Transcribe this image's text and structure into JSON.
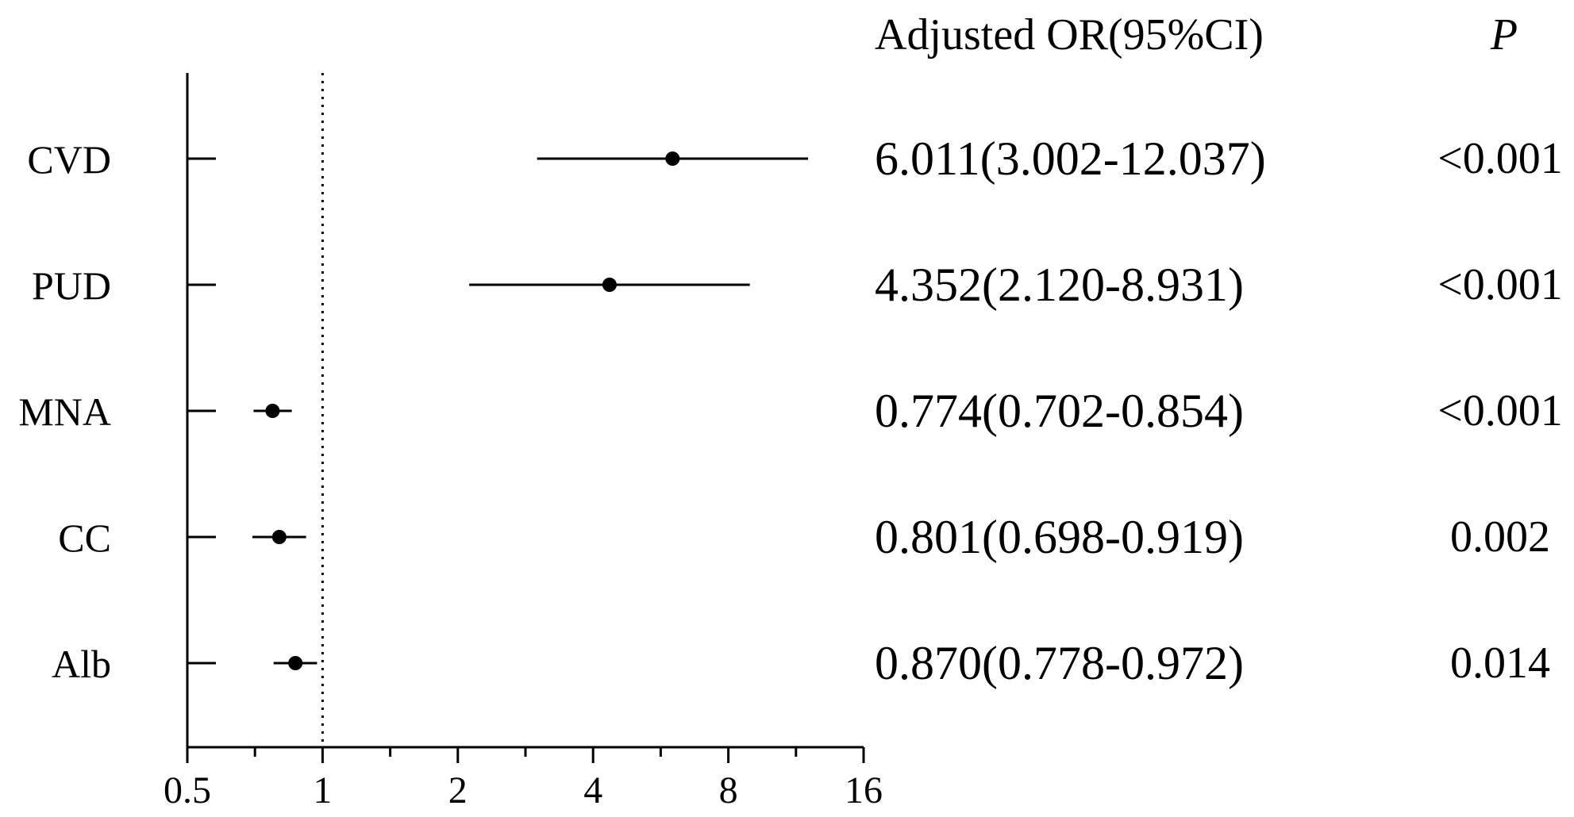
{
  "chart_data": {
    "type": "forest",
    "scale": "log2",
    "xlim": [
      0.5,
      16
    ],
    "reference_line": 1,
    "tick_labels": [
      "0.5",
      "1",
      "2",
      "4",
      "8",
      "16"
    ],
    "tick_values": [
      0.5,
      1,
      2,
      4,
      8,
      16
    ],
    "columns": {
      "estimate_header": "Adjusted OR(95%CI)",
      "p_header": "P"
    },
    "rows": [
      {
        "label": "CVD",
        "or": 6.011,
        "lower": 3.002,
        "upper": 12.037,
        "text": "6.011(3.002-12.037)",
        "p": "<0.001"
      },
      {
        "label": "PUD",
        "or": 4.352,
        "lower": 2.12,
        "upper": 8.931,
        "text": "4.352(2.120-8.931)",
        "p": "<0.001"
      },
      {
        "label": "MNA",
        "or": 0.774,
        "lower": 0.702,
        "upper": 0.854,
        "text": "0.774(0.702-0.854)",
        "p": "<0.001"
      },
      {
        "label": "CC",
        "or": 0.801,
        "lower": 0.698,
        "upper": 0.919,
        "text": "0.801(0.698-0.919)",
        "p": "0.002"
      },
      {
        "label": "Alb",
        "or": 0.87,
        "lower": 0.778,
        "upper": 0.972,
        "text": "0.870(0.778-0.972)",
        "p": "0.014"
      }
    ]
  }
}
